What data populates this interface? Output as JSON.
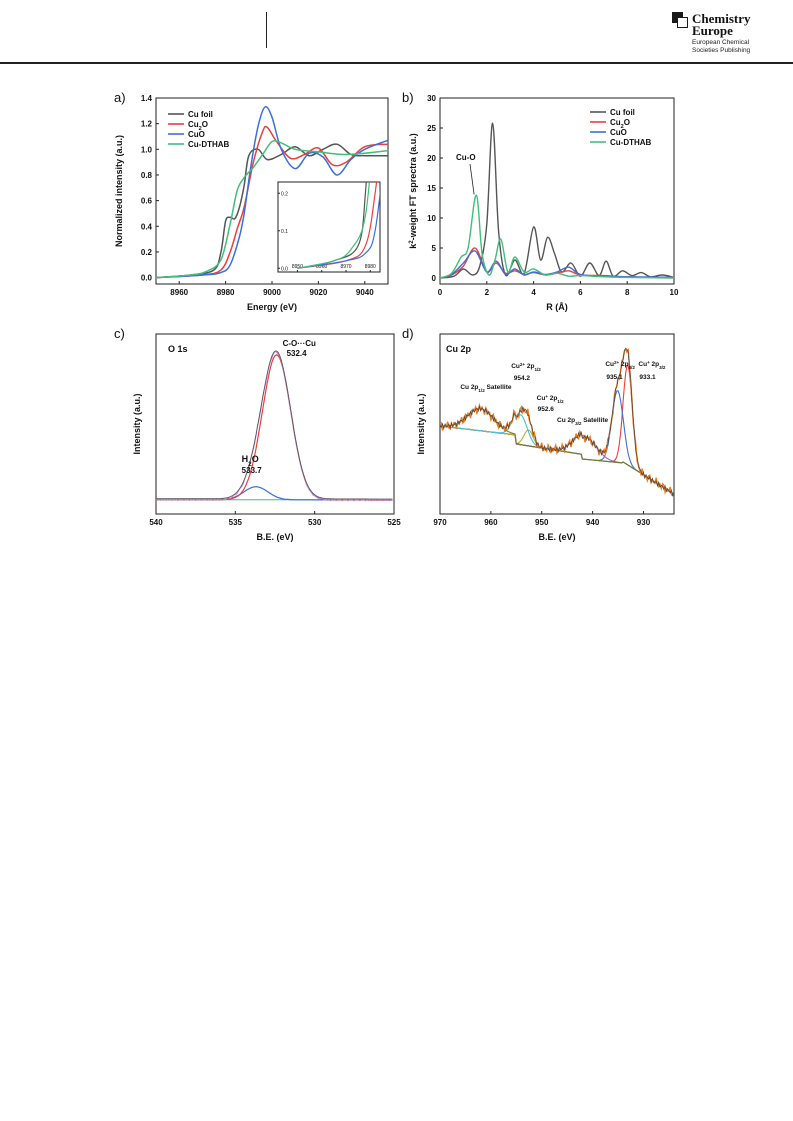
{
  "header": {
    "brand_line1": "Chemistry",
    "brand_line2": "Europe",
    "brand_sub1": "European Chemical",
    "brand_sub2": "Societies Publishing"
  },
  "chart_data": [
    {
      "panel": "a)",
      "type": "line",
      "xlabel": "Energy (eV)",
      "ylabel": "Normalized intensity (a.u.)",
      "xlim": [
        8950,
        9050
      ],
      "ylim": [
        -0.05,
        1.4
      ],
      "xticks": [
        8960,
        8980,
        9000,
        9020,
        9040
      ],
      "yticks": [
        0.0,
        0.2,
        0.4,
        0.6,
        0.8,
        1.0,
        1.2,
        1.4
      ],
      "legend": "top-left",
      "series": [
        {
          "name": "Cu foil",
          "color": "#555555",
          "x": [
            8950,
            8965,
            8975,
            8978,
            8980,
            8982,
            8984,
            8986,
            8988,
            8990,
            8994,
            8998,
            9004,
            9010,
            9016,
            9022,
            9028,
            9034,
            9040,
            9050
          ],
          "y": [
            0.0,
            0.02,
            0.06,
            0.2,
            0.44,
            0.47,
            0.46,
            0.55,
            0.72,
            0.95,
            1.0,
            0.92,
            0.96,
            1.02,
            0.95,
            1.0,
            1.04,
            0.96,
            0.95,
            0.95
          ]
        },
        {
          "name": "Cu2O",
          "color": "#e8413c",
          "x": [
            8950,
            8970,
            8978,
            8982,
            8985,
            8988,
            8992,
            8996,
            8998,
            9002,
            9008,
            9014,
            9020,
            9026,
            9032,
            9040,
            9050
          ],
          "y": [
            0.0,
            0.02,
            0.06,
            0.2,
            0.38,
            0.55,
            0.9,
            1.14,
            1.17,
            1.06,
            0.93,
            0.96,
            1.01,
            0.88,
            0.9,
            1.02,
            1.04
          ]
        },
        {
          "name": "CuO",
          "color": "#3b6fdc",
          "x": [
            8950,
            8970,
            8978,
            8982,
            8986,
            8988,
            8991,
            8994,
            8997,
            9000,
            9004,
            9010,
            9016,
            9022,
            9028,
            9034,
            9040,
            9050
          ],
          "y": [
            0.0,
            0.02,
            0.04,
            0.1,
            0.32,
            0.5,
            0.88,
            1.18,
            1.33,
            1.25,
            1.0,
            0.85,
            0.97,
            0.94,
            0.8,
            0.92,
            1.0,
            1.07
          ]
        },
        {
          "name": "Cu-DTHAB",
          "color": "#3fbf7a",
          "x": [
            8950,
            8965,
            8972,
            8978,
            8982,
            8985,
            8988,
            8992,
            8996,
            9000,
            9004,
            9010,
            9020,
            9030,
            9040,
            9050
          ],
          "y": [
            0.0,
            0.02,
            0.05,
            0.14,
            0.42,
            0.68,
            0.78,
            0.86,
            0.96,
            1.06,
            1.05,
            1.0,
            0.98,
            0.96,
            0.97,
            0.99
          ]
        }
      ],
      "inset": {
        "xlim": [
          8942,
          8984
        ],
        "ylim": [
          -0.01,
          0.23
        ],
        "xticks": [
          8950,
          8960,
          8970,
          8980
        ],
        "yticks": [
          0.0,
          0.1,
          0.2
        ]
      }
    },
    {
      "panel": "b)",
      "type": "line",
      "xlabel": "R (Å)",
      "ylabel": "k²-weight FT sprectra (a.u.)",
      "xlim": [
        0,
        10
      ],
      "ylim": [
        -1,
        30
      ],
      "xticks": [
        0,
        2,
        4,
        6,
        8,
        10
      ],
      "yticks": [
        0,
        5,
        10,
        15,
        20,
        25,
        30
      ],
      "legend": "top-right",
      "annotation": "Cu-O",
      "series": [
        {
          "name": "Cu foil",
          "color": "#555555",
          "x": [
            0,
            0.6,
            1.0,
            1.4,
            1.7,
            2.0,
            2.25,
            2.5,
            2.8,
            3.2,
            3.6,
            4.0,
            4.3,
            4.6,
            4.9,
            5.2,
            5.6,
            6.0,
            6.4,
            6.8,
            7.1,
            7.4,
            7.8,
            8.2,
            8.6,
            9.0,
            9.5,
            10
          ],
          "y": [
            0.0,
            0.3,
            1.5,
            0.5,
            2.0,
            9.0,
            25.8,
            8.0,
            0.5,
            3.0,
            0.8,
            8.5,
            3.0,
            6.8,
            4.0,
            1.0,
            2.5,
            0.3,
            2.5,
            0.4,
            2.8,
            0.3,
            1.2,
            0.4,
            0.9,
            0.2,
            0.5,
            0.1
          ]
        },
        {
          "name": "Cu2O",
          "color": "#e8413c",
          "x": [
            0,
            0.5,
            1.0,
            1.5,
            2.0,
            2.4,
            2.8,
            3.2,
            3.6,
            4.0,
            4.5,
            5.0,
            5.5,
            6.0,
            7.0,
            8.0,
            10
          ],
          "y": [
            0.0,
            0.5,
            2.0,
            5.0,
            1.0,
            2.5,
            0.8,
            1.2,
            0.6,
            0.9,
            0.5,
            0.8,
            1.2,
            0.5,
            0.4,
            0.2,
            0.1
          ]
        },
        {
          "name": "CuO",
          "color": "#3b6fdc",
          "x": [
            0,
            0.5,
            1.0,
            1.5,
            2.0,
            2.4,
            2.8,
            3.2,
            3.6,
            4.0,
            4.5,
            5.0,
            5.5,
            6.0,
            7.0,
            8.0,
            10
          ],
          "y": [
            0.0,
            0.6,
            2.5,
            4.5,
            1.0,
            2.8,
            0.6,
            1.5,
            0.5,
            1.0,
            0.6,
            1.0,
            1.8,
            0.6,
            0.3,
            0.2,
            0.1
          ]
        },
        {
          "name": "Cu-DTHAB",
          "color": "#3fbf7a",
          "x": [
            0,
            0.5,
            0.9,
            1.2,
            1.55,
            1.8,
            2.1,
            2.35,
            2.6,
            2.9,
            3.2,
            3.6,
            4.0,
            4.5,
            5.0,
            5.5,
            6.0,
            7.0,
            8.0,
            10
          ],
          "y": [
            0.0,
            0.8,
            3.5,
            5.0,
            13.8,
            4.0,
            0.5,
            3.0,
            6.5,
            1.0,
            3.5,
            1.0,
            1.5,
            0.5,
            0.8,
            0.3,
            0.4,
            0.2,
            0.1,
            0.0
          ]
        }
      ]
    },
    {
      "panel": "c)",
      "type": "line",
      "title": "O 1s",
      "xlabel": "B.E. (eV)",
      "ylabel": "Intensity (a.u.)",
      "xlim": [
        540,
        525
      ],
      "xticks": [
        540,
        535,
        530,
        525
      ],
      "annotations": [
        "C-O···Cu 532.4",
        "H2O 533.7"
      ],
      "peaks": [
        {
          "label": "C-O···Cu",
          "center": 532.4,
          "color": "#e8413c"
        },
        {
          "label": "H2O",
          "center": 533.7,
          "color": "#3b6fdc"
        }
      ]
    },
    {
      "panel": "d)",
      "type": "line",
      "title": "Cu 2p",
      "xlabel": "B.E. (eV)",
      "ylabel": "Intensity (a.u.)",
      "xlim": [
        970,
        924
      ],
      "xticks": [
        970,
        960,
        950,
        940,
        930
      ],
      "annotations": [
        "Cu 2p1/2 Satellite",
        "Cu2+ 2p1/2 954.2",
        "Cu+ 2p1/2 952.6",
        "Cu 2p3/2 Satellite",
        "Cu2+ 2p3/2 935.1",
        "Cu+ 2p3/2 933.1"
      ]
    }
  ]
}
